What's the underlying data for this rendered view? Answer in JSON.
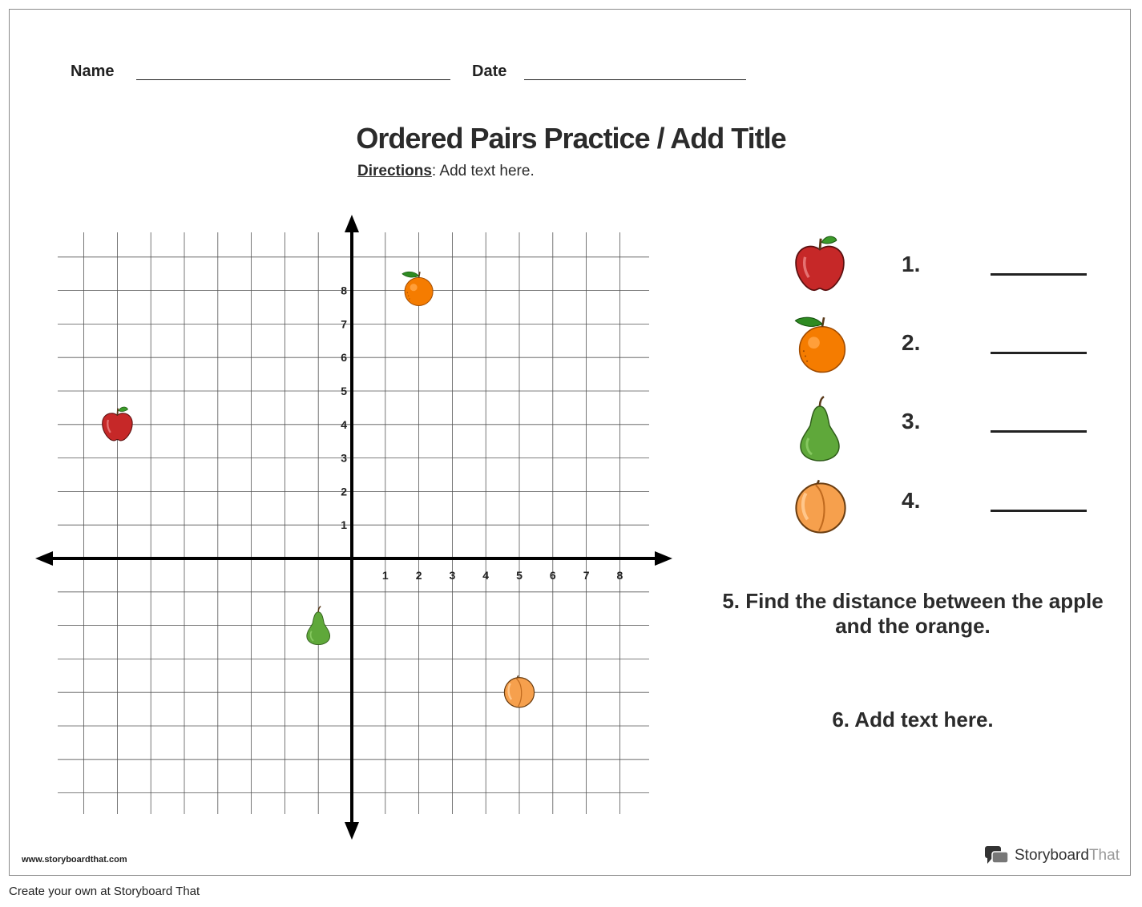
{
  "header": {
    "name_label": "Name",
    "date_label": "Date"
  },
  "title": "Ordered Pairs Practice / Add Title",
  "directions": {
    "label": "Directions",
    "text": ": Add text here."
  },
  "grid": {
    "x_ticks": [
      "1",
      "2",
      "3",
      "4",
      "5",
      "6",
      "7",
      "8"
    ],
    "y_ticks": [
      "8",
      "7",
      "6",
      "5",
      "4",
      "3",
      "2",
      "1"
    ]
  },
  "plotted_points": [
    {
      "fruit": "apple",
      "x": -7,
      "y": 4
    },
    {
      "fruit": "orange",
      "x": 2,
      "y": 8
    },
    {
      "fruit": "pear",
      "x": -1,
      "y": -2
    },
    {
      "fruit": "peach",
      "x": 5,
      "y": -4
    }
  ],
  "questions": [
    {
      "number": "1.",
      "icon": "apple-icon"
    },
    {
      "number": "2.",
      "icon": "orange-icon"
    },
    {
      "number": "3.",
      "icon": "pear-icon"
    },
    {
      "number": "4.",
      "icon": "peach-icon"
    }
  ],
  "question5": "5. Find the distance between the apple and the orange.",
  "question6": "6. Add text here.",
  "footer": {
    "url": "www.storyboardthat.com",
    "create": "Create your own at Storyboard That",
    "brand_a": "Storyboard",
    "brand_b": "That"
  },
  "colors": {
    "apple": "#c62828",
    "orange": "#f57c00",
    "pear": "#5fa83a",
    "peach": "#f6a04d",
    "leaf": "#2e8b22"
  }
}
